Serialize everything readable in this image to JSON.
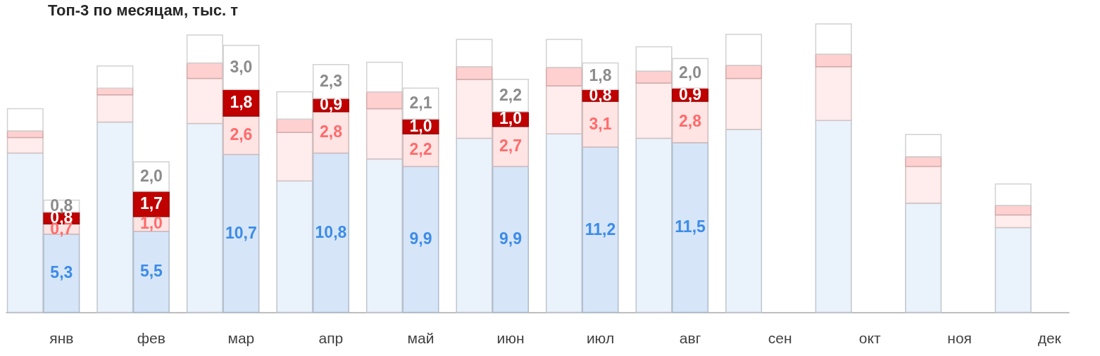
{
  "chart_data": {
    "type": "bar",
    "stacked": true,
    "title": "Топ-3 по месяцам, тыс. т",
    "categories": [
      null,
      "янв",
      null,
      "фев",
      null,
      "мар",
      null,
      "апр",
      null,
      "май",
      null,
      "июн",
      null,
      "июл",
      null,
      "авг",
      null,
      "сен",
      null,
      "окт",
      null,
      "ноя",
      null,
      "дек"
    ],
    "tick_labels": "x",
    "grid": false,
    "series": [
      {
        "colors": [
          "#eaf2fc",
          "#d6e6f8",
          "#eaf2fc",
          "#d6e6f8",
          "#eaf2fc",
          "#d6e6f8",
          "#eaf2fc",
          "#d6e6f8",
          "#eaf2fc",
          "#d6e6f8",
          "#eaf2fc",
          "#d6e6f8",
          "#eaf2fc",
          "#d6e6f8",
          "#eaf2fc",
          "#d6e6f8",
          "#eaf2fc",
          "#d6e6f8",
          "#eaf2fc",
          "#d6e6f8",
          "#eaf2fc",
          "#d6e6f8",
          "#eaf2fc",
          "#d6e6f8"
        ],
        "values": [
          10.8,
          5.3,
          12.9,
          5.5,
          12.8,
          10.7,
          8.9,
          10.8,
          10.4,
          9.9,
          11.8,
          9.9,
          12.1,
          11.2,
          11.8,
          11.5,
          12.4,
          null,
          13.0,
          null,
          7.4,
          null,
          5.75,
          null
        ],
        "value_labels": [
          null,
          "5,3",
          null,
          "5,5",
          null,
          "10,7",
          null,
          "10,8",
          null,
          "9,9",
          null,
          "9,9",
          null,
          "11,2",
          null,
          "11,5",
          null,
          null,
          null,
          null,
          null,
          null,
          null,
          null
        ]
      },
      {
        "colors": [
          "#ffecec",
          "#ffe4e4",
          "#ffecec",
          "#ffe4e4",
          "#ffecec",
          "#ffe4e4",
          "#ffecec",
          "#ffe4e4",
          "#ffecec",
          "#ffe4e4",
          "#ffecec",
          "#ffe4e4",
          "#ffecec",
          "#ffe4e4",
          "#ffecec",
          "#ffe4e4",
          "#ffecec",
          "#ffe4e4",
          "#ffecec",
          "#ffe4e4",
          "#ffecec",
          "#ffe4e4",
          "#ffecec",
          "#ffe4e4"
        ],
        "values": [
          1.05,
          0.7,
          1.85,
          1.0,
          3.05,
          2.6,
          3.3,
          2.8,
          3.4,
          2.2,
          4.0,
          2.7,
          3.25,
          3.1,
          3.75,
          2.8,
          3.45,
          null,
          3.65,
          null,
          2.5,
          null,
          0.85,
          null
        ],
        "value_labels": [
          null,
          "0,7",
          null,
          "1,0",
          null,
          "2,6",
          null,
          "2,8",
          null,
          "2,2",
          null,
          "2,7",
          null,
          "3,1",
          null,
          "2,8",
          null,
          null,
          null,
          null,
          null,
          null,
          null,
          null
        ]
      },
      {
        "colors": [
          "#ffd0d0",
          "#c00000",
          "#ffd0d0",
          "#c00000",
          "#ffd0d0",
          "#c00000",
          "#ffd0d0",
          "#c00000",
          "#ffd0d0",
          "#c00000",
          "#ffd0d0",
          "#c00000",
          "#ffd0d0",
          "#c00000",
          "#ffd0d0",
          "#c00000",
          "#ffd0d0",
          "#c00000",
          "#ffd0d0",
          "#c00000",
          "#ffd0d0",
          "#c00000",
          "#ffd0d0",
          "#c00000"
        ],
        "values": [
          0.45,
          0.8,
          0.45,
          1.7,
          1.05,
          1.8,
          0.9,
          0.9,
          1.15,
          1.0,
          0.85,
          1.0,
          1.25,
          0.8,
          0.8,
          0.9,
          0.9,
          null,
          0.85,
          null,
          0.65,
          null,
          0.65,
          null
        ],
        "value_labels": [
          null,
          "0,8",
          null,
          "1,7",
          null,
          "1,8",
          null,
          "0,9",
          null,
          "1,0",
          null,
          "1,0",
          null,
          "0,8",
          null,
          "0,9",
          null,
          null,
          null,
          null,
          null,
          null,
          null,
          null
        ]
      },
      {
        "colors": [
          "#ffffff",
          "#ffffff",
          "#ffffff",
          "#ffffff",
          "#ffffff",
          "#ffffff",
          "#ffffff",
          "#ffffff",
          "#ffffff",
          "#ffffff",
          "#ffffff",
          "#ffffff",
          "#ffffff",
          "#ffffff",
          "#ffffff",
          "#ffffff",
          "#ffffff",
          "#ffffff",
          "#ffffff",
          "#ffffff",
          "#ffffff",
          "#ffffff",
          "#ffffff",
          "#ffffff"
        ],
        "values": [
          1.5,
          0.8,
          1.5,
          2.0,
          1.9,
          3.0,
          1.85,
          2.3,
          2.0,
          2.1,
          1.85,
          2.2,
          1.9,
          1.8,
          1.65,
          2.0,
          2.1,
          null,
          2.05,
          null,
          1.5,
          null,
          1.45,
          null
        ],
        "value_labels": [
          null,
          "0,8",
          null,
          "2,0",
          null,
          "3,0",
          null,
          "2,3",
          null,
          "2,1",
          null,
          "2,2",
          null,
          "1,8",
          null,
          "2,0",
          null,
          null,
          null,
          null,
          null,
          null,
          null,
          null
        ]
      }
    ]
  }
}
